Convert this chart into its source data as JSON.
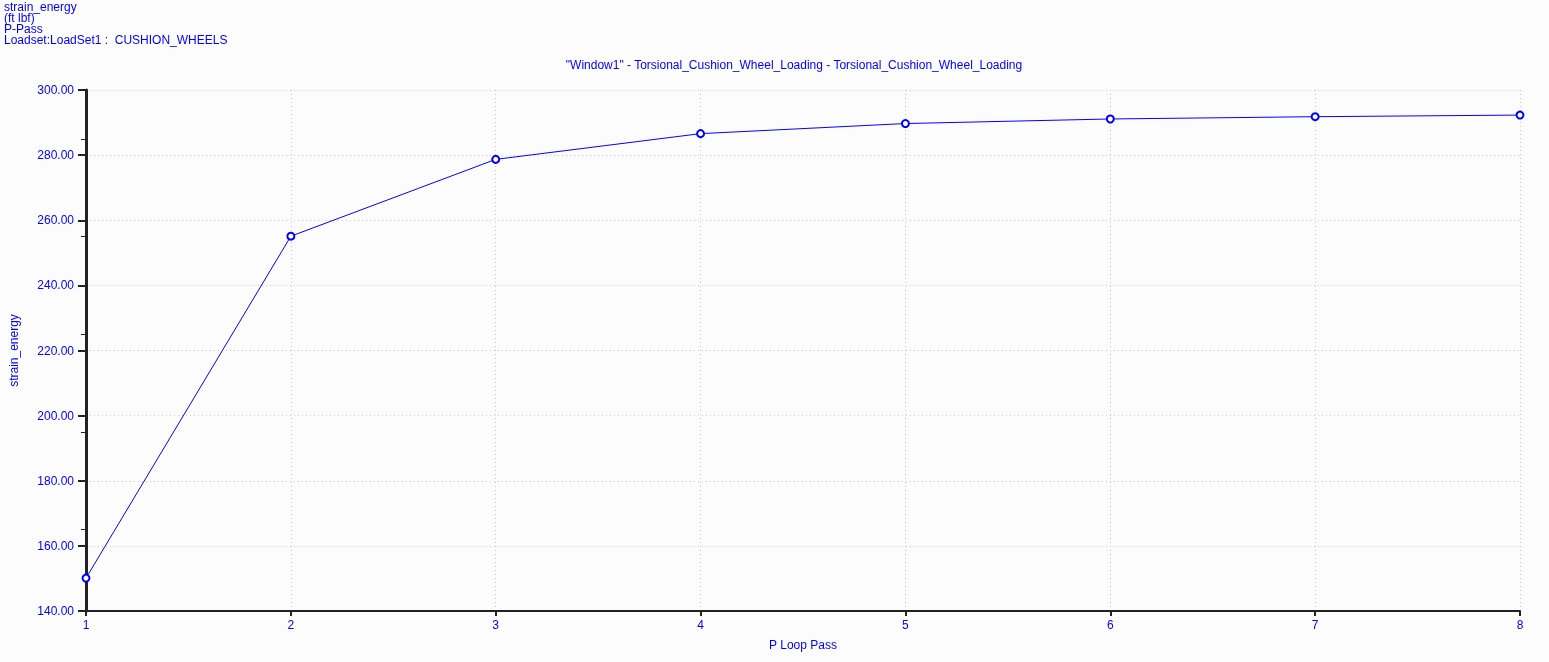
{
  "chart_data": {
    "type": "line",
    "title": "\"Window1\" - Torsional_Cushion_Wheel_Loading - Torsional_Cushion_Wheel_Loading",
    "annotations": [
      "strain_energy",
      "(ft lbf)",
      "P-Pass",
      "Loadset:LoadSet1 :  CUSHION_WHEELS"
    ],
    "xlabel": "P Loop Pass",
    "ylabel": "strain_energy",
    "x": [
      1,
      2,
      3,
      4,
      5,
      6,
      7,
      8
    ],
    "series": [
      {
        "color": "#0000ff",
        "values": [
          150.1,
          255.1,
          278.7,
          286.6,
          289.7,
          291.1,
          291.8,
          292.3
        ]
      }
    ],
    "xlim": [
      1,
      8
    ],
    "xticks": [
      1,
      2,
      3,
      4,
      5,
      6,
      7,
      8
    ],
    "ylim": [
      140,
      300
    ],
    "yticks": [
      {
        "value": 140,
        "label": "140.00"
      },
      {
        "value": 160,
        "label": "160.00"
      },
      {
        "value": 180,
        "label": "180.00"
      },
      {
        "value": 200,
        "label": "200.00"
      },
      {
        "value": 220,
        "label": "220.00"
      },
      {
        "value": 240,
        "label": "240.00"
      },
      {
        "value": 260,
        "label": "260.00"
      },
      {
        "value": 280,
        "label": "280.00"
      },
      {
        "value": 300,
        "label": "300.00"
      }
    ],
    "grid": true,
    "marker": "circle",
    "line_style": "solid"
  }
}
